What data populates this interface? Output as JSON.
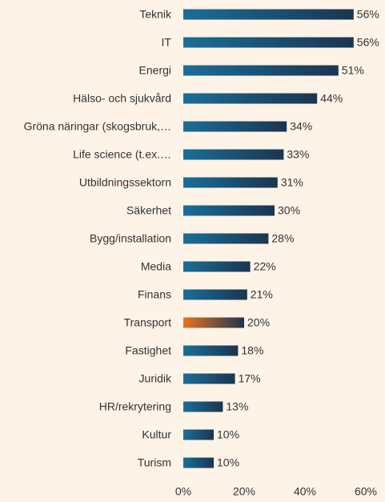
{
  "chart_data": {
    "type": "bar",
    "orientation": "horizontal",
    "categories": [
      "Teknik",
      "IT",
      "Energi",
      "Hälso- och sjukvård",
      "Gröna näringar (skogsbruk,…",
      "Life science (t.ex.…",
      "Utbildningssektorn",
      "Säkerhet",
      "Bygg/installation",
      "Media",
      "Finans",
      "Transport",
      "Fastighet",
      "Juridik",
      "HR/rekrytering",
      "Kultur",
      "Turism"
    ],
    "values": [
      56,
      56,
      51,
      44,
      34,
      33,
      31,
      30,
      28,
      22,
      21,
      20,
      18,
      17,
      13,
      10,
      10
    ],
    "value_labels": [
      "56%",
      "56%",
      "51%",
      "44%",
      "34%",
      "33%",
      "31%",
      "30%",
      "28%",
      "22%",
      "21%",
      "20%",
      "18%",
      "17%",
      "13%",
      "10%",
      "10%"
    ],
    "colors": [
      "#1a6e99",
      "#1a6e99",
      "#1a6e99",
      "#1a6e99",
      "#1a6e99",
      "#1a6e99",
      "#1a6e99",
      "#1a6e99",
      "#1a6e99",
      "#1a6e99",
      "#1a6e99",
      "#e8731f",
      "#1a6e99",
      "#1a6e99",
      "#1a6e99",
      "#1a6e99",
      "#1a6e99"
    ],
    "xlim": [
      0,
      60
    ],
    "xticks": [
      {
        "value": 0,
        "label": "0%"
      },
      {
        "value": 20,
        "label": "20%"
      },
      {
        "value": 40,
        "label": "40%"
      },
      {
        "value": 60,
        "label": "60%"
      }
    ],
    "grid": false
  }
}
